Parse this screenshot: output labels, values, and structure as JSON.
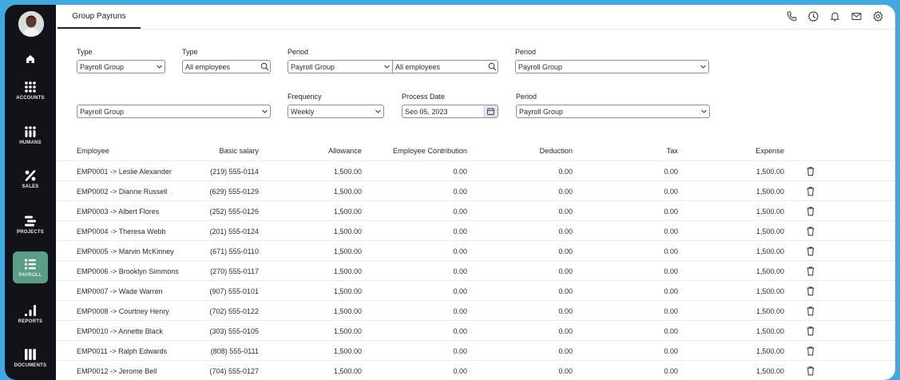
{
  "sidebar": {
    "items": [
      {
        "key": "home",
        "label": ""
      },
      {
        "key": "accounts",
        "label": "ACCOUNTS"
      },
      {
        "key": "humans",
        "label": "HUMANS"
      },
      {
        "key": "sales",
        "label": "SALES"
      },
      {
        "key": "projects",
        "label": "PROJECTS"
      },
      {
        "key": "payroll",
        "label": "PAYROLL",
        "active": true
      },
      {
        "key": "reports",
        "label": "REPORTS"
      },
      {
        "key": "documents",
        "label": "DOCUMENTS"
      }
    ],
    "active_color": "#5a9e88"
  },
  "header": {
    "tab_label": "Group Payruns",
    "icons": [
      "phone-icon",
      "clock-icon",
      "bell-icon",
      "mail-icon",
      "gear-icon"
    ]
  },
  "filters": {
    "row1": {
      "type1_label": "Type",
      "type1_value": "Payroll Group",
      "type2_label": "Type",
      "type2_value": "All employees",
      "period1_label": "Period",
      "period1_value_a": "Payroll Group",
      "period1_value_b": "All employees",
      "period2_label": "Period",
      "period2_value": "Payroll Group"
    },
    "row2": {
      "group_value": "Payroll Group",
      "frequency_label": "Frequency",
      "frequency_value": "Weekly",
      "process_date_label": "Process Date",
      "process_date_value": "Seo 05, 2023",
      "period_label": "Period",
      "period_value": "Payroll Group"
    }
  },
  "table": {
    "headers": [
      "Employee",
      "Basic salary",
      "Allowance",
      "Employee Contribution",
      "Deduction",
      "Tax",
      "Expense"
    ],
    "rows": [
      {
        "employee": "EMP0001 -> Leslie Alexander",
        "basic": "(219) 555-0114",
        "allowance": "1,500.00",
        "contribution": "0.00",
        "deduction": "0.00",
        "tax": "0.00",
        "expense": "1,500.00"
      },
      {
        "employee": "EMP0002 -> Dianne Russell",
        "basic": "(629) 555-0129",
        "allowance": "1,500.00",
        "contribution": "0.00",
        "deduction": "0.00",
        "tax": "0.00",
        "expense": "1,500.00"
      },
      {
        "employee": "EMP0003 -> Albert Flores",
        "basic": "(252) 555-0126",
        "allowance": "1,500.00",
        "contribution": "0.00",
        "deduction": "0.00",
        "tax": "0.00",
        "expense": "1,500.00"
      },
      {
        "employee": "EMP0004 -> Theresa Webb",
        "basic": "(201) 555-0124",
        "allowance": "1,500.00",
        "contribution": "0.00",
        "deduction": "0.00",
        "tax": "0.00",
        "expense": "1,500.00"
      },
      {
        "employee": "EMP0005 -> Marvin McKinney",
        "basic": "(671) 555-0110",
        "allowance": "1,500.00",
        "contribution": "0.00",
        "deduction": "0.00",
        "tax": "0.00",
        "expense": "1,500.00"
      },
      {
        "employee": "EMP0006 -> Brooklyn Simmons",
        "basic": "(270) 555-0117",
        "allowance": "1,500.00",
        "contribution": "0.00",
        "deduction": "0.00",
        "tax": "0.00",
        "expense": "1,500.00"
      },
      {
        "employee": "EMP0007 -> Wade Warren",
        "basic": "(907) 555-0101",
        "allowance": "1,500.00",
        "contribution": "0.00",
        "deduction": "0.00",
        "tax": "0.00",
        "expense": "1,500.00"
      },
      {
        "employee": "EMP0008 -> Courtney Henry",
        "basic": "(702) 555-0122",
        "allowance": "1,500.00",
        "contribution": "0.00",
        "deduction": "0.00",
        "tax": "0.00",
        "expense": "1,500.00"
      },
      {
        "employee": "EMP0010 -> Annette Black",
        "basic": "(303) 555-0105",
        "allowance": "1,500.00",
        "contribution": "0.00",
        "deduction": "0.00",
        "tax": "0.00",
        "expense": "1,500.00"
      },
      {
        "employee": "EMP0011 -> Ralph Edwards",
        "basic": "(808) 555-0111",
        "allowance": "1,500.00",
        "contribution": "0.00",
        "deduction": "0.00",
        "tax": "0.00",
        "expense": "1,500.00"
      },
      {
        "employee": "EMP0012 -> Jerome Bell",
        "basic": "(704) 555-0127",
        "allowance": "1,500.00",
        "contribution": "0.00",
        "deduction": "0.00",
        "tax": "0.00",
        "expense": "1,500.00"
      }
    ]
  }
}
